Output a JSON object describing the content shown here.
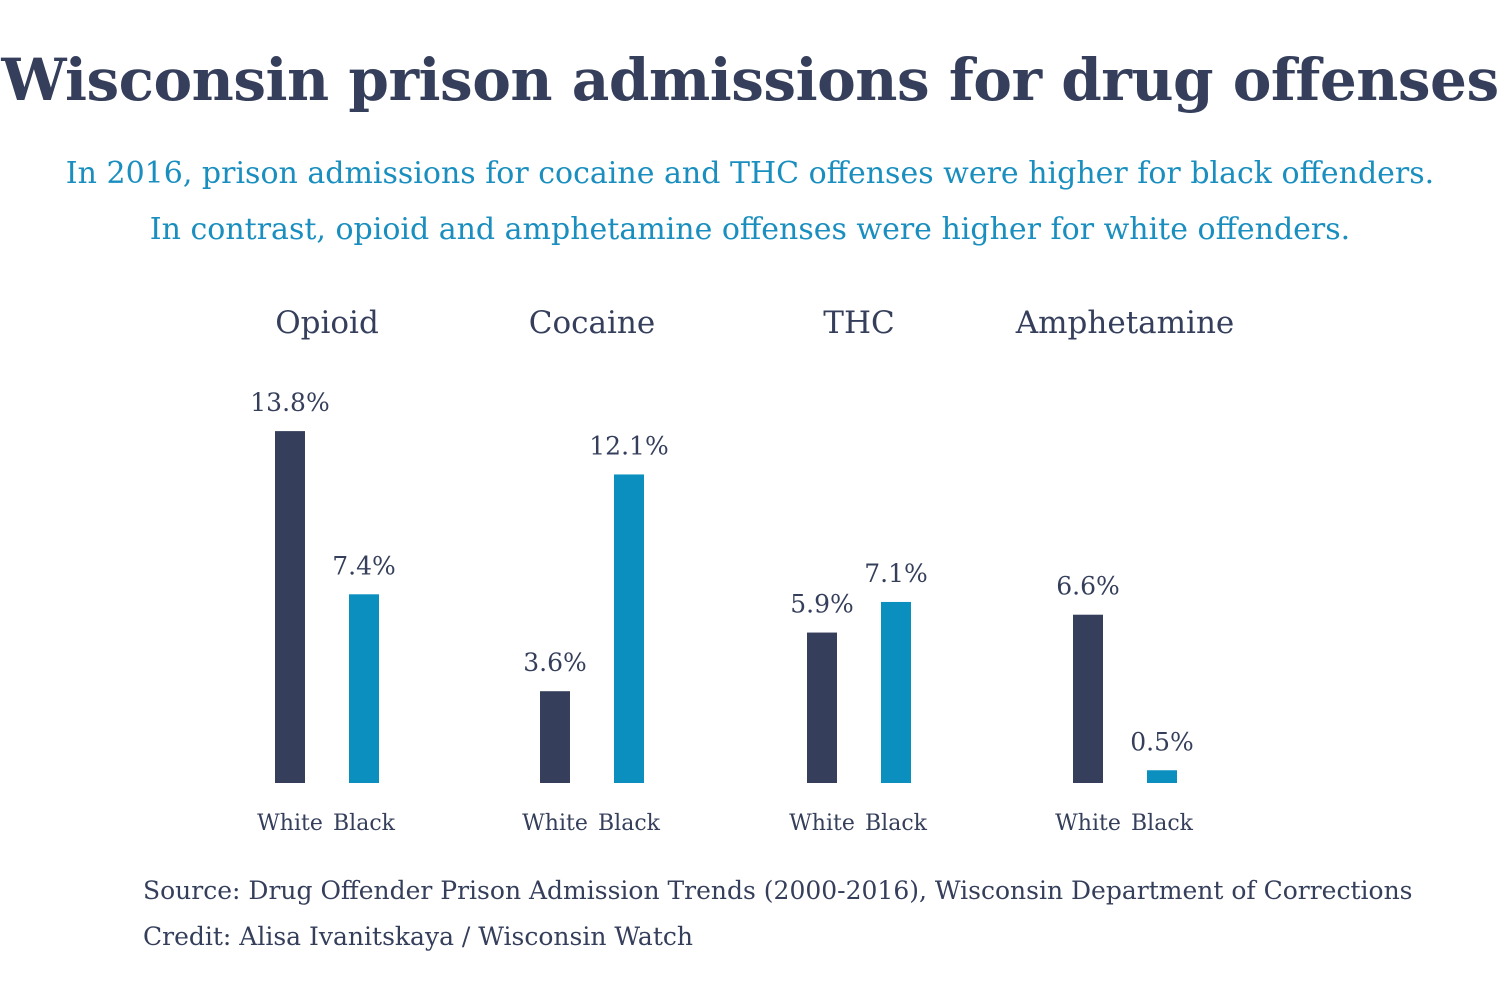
{
  "title": "Wisconsin prison admissions for drug offenses",
  "subtitle": {
    "line1": "In 2016, prison admissions for cocaine and THC offenses were higher for black offenders.",
    "line2": "In contrast, opioid and amphetamine offenses were higher for white offenders."
  },
  "footer": {
    "source": "Source: Drug Offender Prison Admission Trends (2000-2016), Wisconsin Department of Corrections",
    "credit": "Credit: Alisa Ivanitskaya / Wisconsin Watch"
  },
  "colors": {
    "white": "#353f5b",
    "black": "#0a8fbf"
  },
  "chart_data": {
    "type": "bar",
    "categories": [
      "Opioid",
      "Cocaine",
      "THC",
      "Amphetamine"
    ],
    "series": [
      {
        "name": "White",
        "values": [
          13.8,
          3.6,
          5.9,
          6.6
        ],
        "labels": [
          "13.8%",
          "3.6%",
          "5.9%",
          "6.6%"
        ]
      },
      {
        "name": "Black",
        "values": [
          7.4,
          12.1,
          7.1,
          0.5
        ],
        "labels": [
          "7.4%",
          "12.1%",
          "7.1%",
          "0.5%"
        ]
      }
    ],
    "unit": "%",
    "grid": false,
    "legend": "none"
  }
}
